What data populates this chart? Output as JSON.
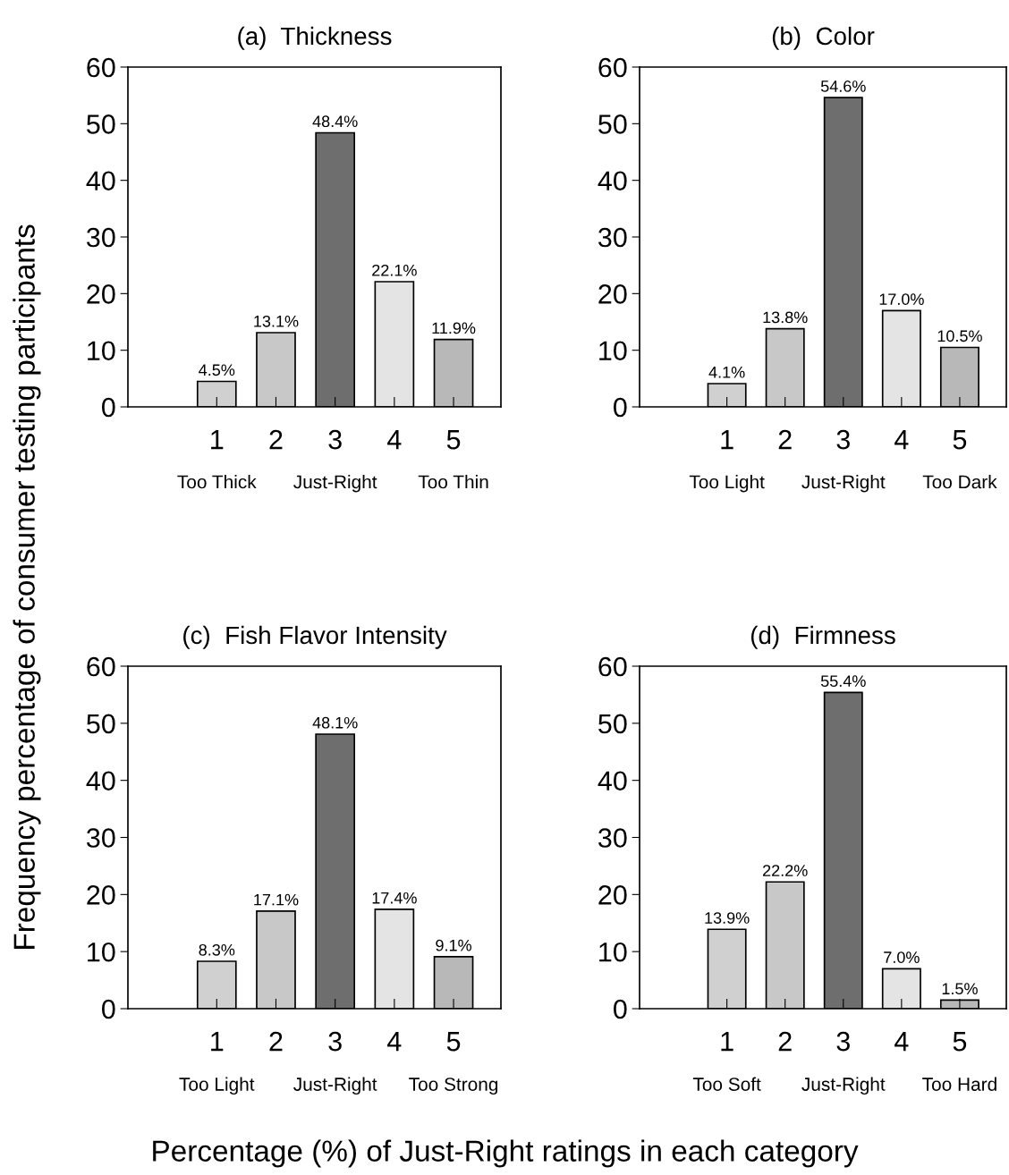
{
  "chart_data": [
    {
      "type": "bar",
      "title": "(a)  Thickness",
      "ylabel": "Frequency percentage of consumer testing participants",
      "categories": [
        "1\nToo Thick",
        "2",
        "3\nJust-Right",
        "4",
        "5\nToo Thin"
      ],
      "values": [
        4.5,
        13.1,
        48.4,
        22.1,
        11.9
      ],
      "value_labels": [
        "4.5%",
        "13.1%",
        "48.4%",
        "22.1%",
        "11.9%"
      ],
      "colors": [
        "#d0d0d0",
        "#c8c8c8",
        "#6e6e6e",
        "#e4e4e4",
        "#b8b8b8"
      ],
      "ylim": [
        0,
        60
      ],
      "yticks": [
        0,
        10,
        20,
        30,
        40,
        50,
        60
      ],
      "grid": false,
      "legend": false
    },
    {
      "type": "bar",
      "title": "(b)  Color",
      "categories": [
        "1\nToo Light",
        "2",
        "3\nJust-Right",
        "4",
        "5\nToo Dark"
      ],
      "values": [
        4.1,
        13.8,
        54.6,
        17.0,
        10.5
      ],
      "value_labels": [
        "4.1%",
        "13.8%",
        "54.6%",
        "17.0%",
        "10.5%"
      ],
      "colors": [
        "#d0d0d0",
        "#c8c8c8",
        "#6e6e6e",
        "#e4e4e4",
        "#b8b8b8"
      ],
      "ylim": [
        0,
        60
      ],
      "yticks": [
        0,
        10,
        20,
        30,
        40,
        50,
        60
      ],
      "grid": false,
      "legend": false
    },
    {
      "type": "bar",
      "title": "(c)  Fish Flavor Intensity",
      "xlabel": "Percentage (%) of Just-Right ratings in each category",
      "categories": [
        "1\nToo Light",
        "2",
        "3\nJust-Right",
        "4",
        "5\nToo Strong"
      ],
      "values": [
        8.3,
        17.1,
        48.1,
        17.4,
        9.1
      ],
      "value_labels": [
        "8.3%",
        "17.1%",
        "48.1%",
        "17.4%",
        "9.1%"
      ],
      "colors": [
        "#d0d0d0",
        "#c8c8c8",
        "#6e6e6e",
        "#e4e4e4",
        "#b8b8b8"
      ],
      "ylim": [
        0,
        60
      ],
      "yticks": [
        0,
        10,
        20,
        30,
        40,
        50,
        60
      ],
      "grid": false,
      "legend": false
    },
    {
      "type": "bar",
      "title": "(d)  Firmness",
      "categories": [
        "1\nToo Soft",
        "2",
        "3\nJust-Right",
        "4",
        "5\nToo Hard"
      ],
      "values": [
        13.9,
        22.2,
        55.4,
        7.0,
        1.5
      ],
      "value_labels": [
        "13.9%",
        "22.2%",
        "55.4%",
        "7.0%",
        "1.5%"
      ],
      "colors": [
        "#d0d0d0",
        "#c8c8c8",
        "#6e6e6e",
        "#e4e4e4",
        "#b8b8b8"
      ],
      "ylim": [
        0,
        60
      ],
      "yticks": [
        0,
        10,
        20,
        30,
        40,
        50,
        60
      ],
      "grid": false,
      "legend": false
    }
  ]
}
